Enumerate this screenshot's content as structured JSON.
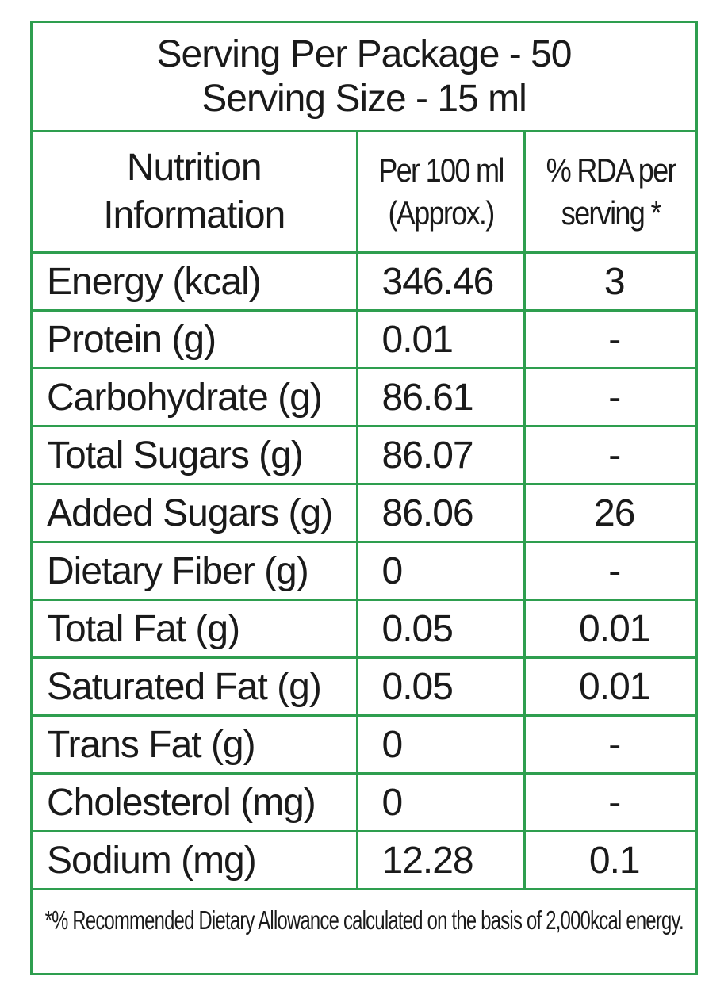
{
  "serving": {
    "line1": "Serving Per Package - 50",
    "line2": "Serving Size - 15 ml"
  },
  "headers": {
    "col1": "Nutrition Information",
    "col2": "Per 100 ml (Approx.)",
    "col3": "% RDA per serving *"
  },
  "rows": [
    {
      "nutrient": "Energy (kcal)",
      "per100": "346.46",
      "rda": "3"
    },
    {
      "nutrient": "Protein (g)",
      "per100": "0.01",
      "rda": "-"
    },
    {
      "nutrient": "Carbohydrate (g)",
      "per100": "86.61",
      "rda": "-"
    },
    {
      "nutrient": "Total Sugars (g)",
      "per100": "86.07",
      "rda": "-"
    },
    {
      "nutrient": "Added Sugars (g)",
      "per100": "86.06",
      "rda": "26"
    },
    {
      "nutrient": "Dietary Fiber (g)",
      "per100": "0",
      "rda": "-"
    },
    {
      "nutrient": "Total Fat (g)",
      "per100": "0.05",
      "rda": "0.01"
    },
    {
      "nutrient": "Saturated Fat (g)",
      "per100": "0.05",
      "rda": "0.01"
    },
    {
      "nutrient": "Trans Fat (g)",
      "per100": "0",
      "rda": "-"
    },
    {
      "nutrient": "Cholesterol (mg)",
      "per100": "0",
      "rda": "-"
    },
    {
      "nutrient": "Sodium (mg)",
      "per100": "12.28",
      "rda": "0.1"
    }
  ],
  "footnote": "*% Recommended Dietary Allowance calculated on the basis of 2,000kcal energy.",
  "colors": {
    "border": "#2e9e4f",
    "text": "#1a1a1a",
    "background": "#ffffff"
  }
}
